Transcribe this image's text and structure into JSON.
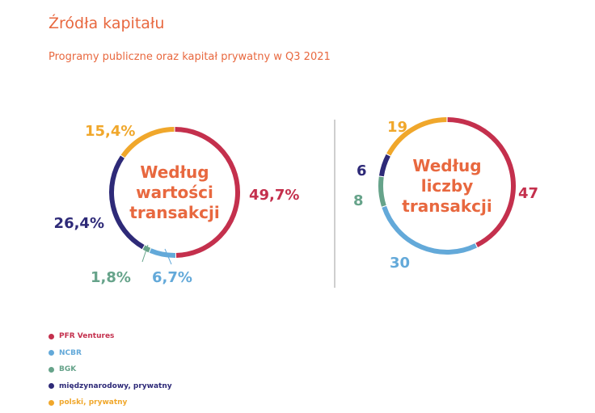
{
  "header": {
    "title": "Źródła kapitału",
    "subtitle": "Programy publiczne oraz kapitał prywatny w Q3 2021"
  },
  "colors": {
    "accent": "#e8683f",
    "pfr": "#c4304d",
    "ncbr": "#63a9d9",
    "bgk": "#66a38a",
    "intl": "#2e2a78",
    "pl": "#f0a72b",
    "divider": "#cfcfcf"
  },
  "chart_data": [
    {
      "type": "pie",
      "title": "Według wartości transakcji",
      "center_lines": [
        "Według",
        "wartości",
        "transakcji"
      ],
      "slices": [
        {
          "name": "PFR Ventures",
          "value": 49.7,
          "label": "49,7%",
          "color": "#c4304d"
        },
        {
          "name": "NCBR",
          "value": 6.7,
          "label": "6,7%",
          "color": "#63a9d9"
        },
        {
          "name": "BGK",
          "value": 1.8,
          "label": "1,8%",
          "color": "#66a38a"
        },
        {
          "name": "międzynarodowy, prywatny",
          "value": 26.4,
          "label": "26,4%",
          "color": "#2e2a78"
        },
        {
          "name": "polski, prywatny",
          "value": 15.4,
          "label": "15,4%",
          "color": "#f0a72b"
        }
      ]
    },
    {
      "type": "pie",
      "title": "Według liczby transakcji",
      "center_lines": [
        "Według",
        "liczby",
        "transakcji"
      ],
      "slices": [
        {
          "name": "PFR Ventures",
          "value": 47,
          "label": "47",
          "color": "#c4304d"
        },
        {
          "name": "NCBR",
          "value": 30,
          "label": "30",
          "color": "#63a9d9"
        },
        {
          "name": "BGK",
          "value": 8,
          "label": "8",
          "color": "#66a38a"
        },
        {
          "name": "międzynarodowy, prywatny",
          "value": 6,
          "label": "6",
          "color": "#2e2a78"
        },
        {
          "name": "polski, prywatny",
          "value": 19,
          "label": "19",
          "color": "#f0a72b"
        }
      ]
    }
  ],
  "legend": [
    {
      "label": "PFR Ventures",
      "color": "#c4304d"
    },
    {
      "label": "NCBR",
      "color": "#63a9d9"
    },
    {
      "label": "BGK",
      "color": "#66a38a"
    },
    {
      "label": "międzynarodowy, prywatny",
      "color": "#2e2a78"
    },
    {
      "label": "polski, prywatny",
      "color": "#f0a72b"
    }
  ]
}
